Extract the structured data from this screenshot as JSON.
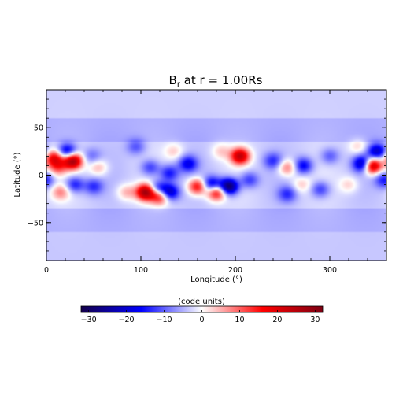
{
  "chart_data": {
    "type": "heatmap",
    "title": "B",
    "title_subscript": "r",
    "title_suffix": " at r = 1.00Rs",
    "xlabel": "Longitude (°)",
    "ylabel": "Latitude (°)",
    "xlim": [
      0,
      360
    ],
    "ylim": [
      -90,
      90
    ],
    "xticks": [
      0,
      100,
      200,
      300
    ],
    "yticks": [
      50,
      0,
      -50
    ],
    "grid": false,
    "colorbar": {
      "label": "(code units)",
      "range": [
        -32,
        32
      ],
      "ticks": [
        -30,
        -20,
        -10,
        0,
        10,
        20,
        30
      ],
      "colors": [
        "#14004b",
        "#0000ff",
        "#ffffff",
        "#ff0000",
        "#7d0012"
      ]
    },
    "background_field": {
      "polar_north": -3,
      "polar_south": -3.5,
      "mid_latitude_band": -5
    },
    "features": [
      {
        "lon": 8,
        "lat": 18,
        "value": 20
      },
      {
        "lon": 12,
        "lat": 8,
        "value": 12
      },
      {
        "lon": 28,
        "lat": 15,
        "value": 30
      },
      {
        "lon": 22,
        "lat": 25,
        "value": -18
      },
      {
        "lon": 30,
        "lat": -10,
        "value": -12
      },
      {
        "lon": 15,
        "lat": -18,
        "value": 10
      },
      {
        "lon": 50,
        "lat": -12,
        "value": -10
      },
      {
        "lon": 48,
        "lat": 20,
        "value": -6
      },
      {
        "lon": 55,
        "lat": 8,
        "value": 8
      },
      {
        "lon": 85,
        "lat": -18,
        "value": 8
      },
      {
        "lon": 95,
        "lat": 30,
        "value": -8
      },
      {
        "lon": 105,
        "lat": -18,
        "value": 30
      },
      {
        "lon": 110,
        "lat": 8,
        "value": -10
      },
      {
        "lon": 118,
        "lat": -15,
        "value": -16
      },
      {
        "lon": 120,
        "lat": -22,
        "value": 22
      },
      {
        "lon": 130,
        "lat": -18,
        "value": -20
      },
      {
        "lon": 130,
        "lat": 2,
        "value": -12
      },
      {
        "lon": 135,
        "lat": 25,
        "value": 6
      },
      {
        "lon": 150,
        "lat": 12,
        "value": -14
      },
      {
        "lon": 160,
        "lat": -12,
        "value": 20
      },
      {
        "lon": 175,
        "lat": -10,
        "value": -18
      },
      {
        "lon": 180,
        "lat": -18,
        "value": 22
      },
      {
        "lon": 193,
        "lat": -12,
        "value": -28
      },
      {
        "lon": 185,
        "lat": 25,
        "value": 6
      },
      {
        "lon": 205,
        "lat": 20,
        "value": 26
      },
      {
        "lon": 215,
        "lat": -5,
        "value": -10
      },
      {
        "lon": 240,
        "lat": 15,
        "value": -10
      },
      {
        "lon": 255,
        "lat": 8,
        "value": 12
      },
      {
        "lon": 255,
        "lat": -20,
        "value": -10
      },
      {
        "lon": 272,
        "lat": 10,
        "value": -14
      },
      {
        "lon": 270,
        "lat": -10,
        "value": 6
      },
      {
        "lon": 290,
        "lat": -15,
        "value": -10
      },
      {
        "lon": 300,
        "lat": 20,
        "value": -8
      },
      {
        "lon": 320,
        "lat": -10,
        "value": 6
      },
      {
        "lon": 335,
        "lat": 12,
        "value": -22
      },
      {
        "lon": 345,
        "lat": 10,
        "value": 30
      },
      {
        "lon": 350,
        "lat": 25,
        "value": -18
      },
      {
        "lon": 330,
        "lat": 30,
        "value": 6
      },
      {
        "lon": 358,
        "lat": -5,
        "value": -12
      }
    ]
  }
}
